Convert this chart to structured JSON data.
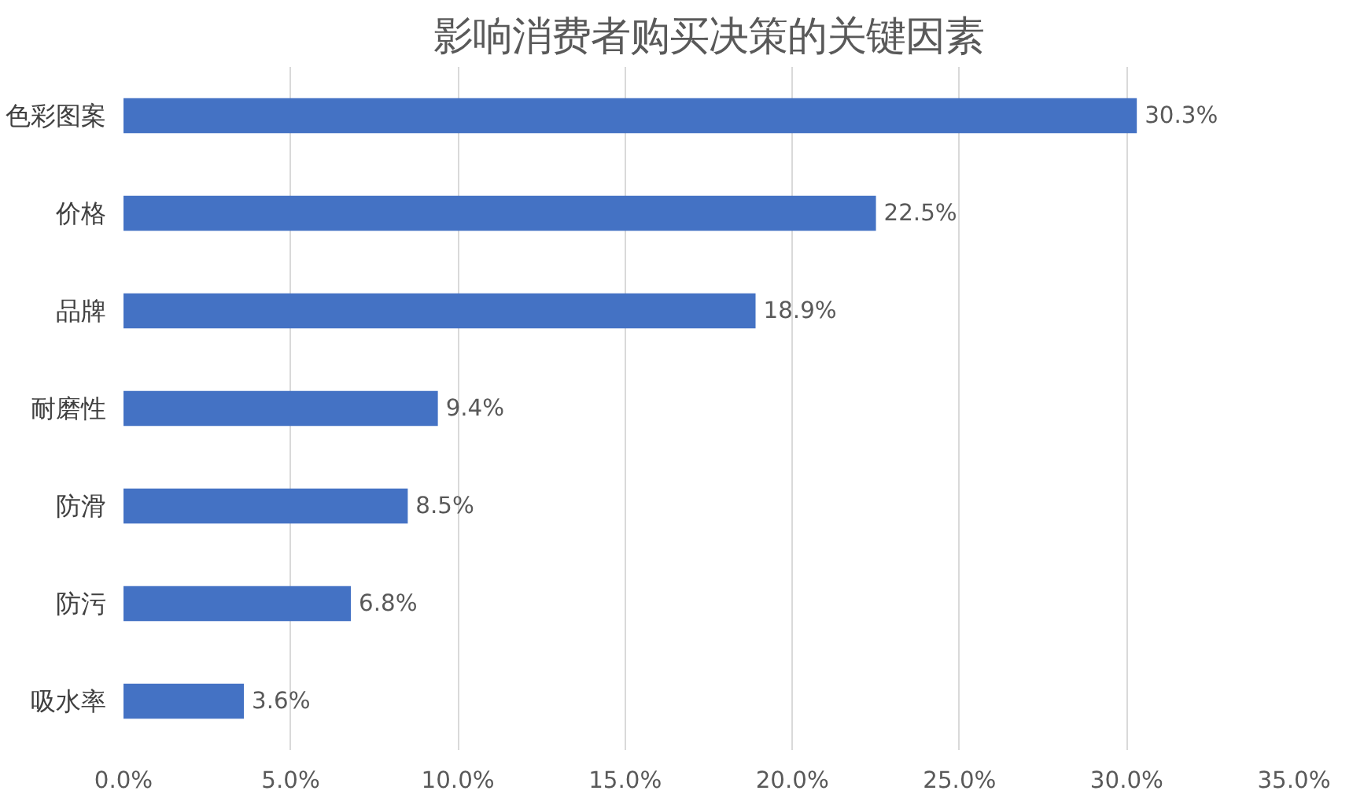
{
  "chart_data": {
    "type": "bar",
    "orientation": "horizontal",
    "title": "影响消费者购买决策的关键因素",
    "categories": [
      "色彩图案",
      "价格",
      "品牌",
      "耐磨性",
      "防滑",
      "防污",
      "吸水率"
    ],
    "values": [
      30.3,
      22.5,
      18.9,
      9.4,
      8.5,
      6.8,
      3.6
    ],
    "value_labels": [
      "30.3%",
      "22.5%",
      "18.9%",
      "9.4%",
      "8.5%",
      "6.8%",
      "3.6%"
    ],
    "color": "#4472c4",
    "xlim": [
      0,
      35
    ],
    "xticks": [
      {
        "value": 0,
        "label": "0.0%"
      },
      {
        "value": 5,
        "label": "5.0%"
      },
      {
        "value": 10,
        "label": "10.0%"
      },
      {
        "value": 15,
        "label": "15.0%"
      },
      {
        "value": 20,
        "label": "20.0%"
      },
      {
        "value": 25,
        "label": "25.0%"
      },
      {
        "value": 30,
        "label": "30.0%"
      },
      {
        "value": 35,
        "label": "35.0%"
      }
    ],
    "grid": "x"
  }
}
